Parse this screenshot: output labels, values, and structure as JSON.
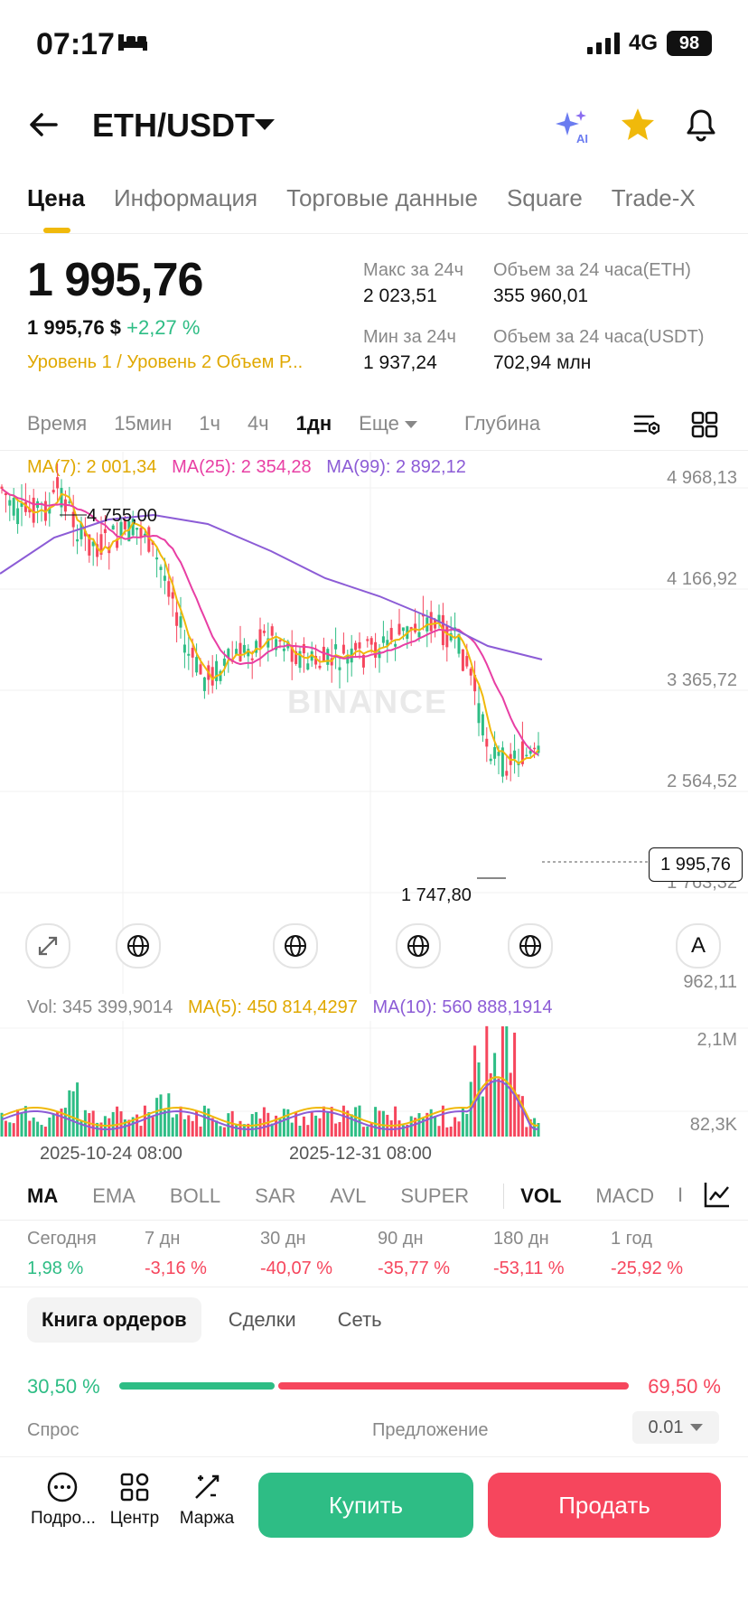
{
  "status": {
    "time": "07:17",
    "network": "4G",
    "battery": "98"
  },
  "header": {
    "pair": "ETH/USDT"
  },
  "tabs": [
    "Цена",
    "Информация",
    "Торговые данные",
    "Square",
    "Trade-X"
  ],
  "ticker": {
    "price": "1 995,76",
    "price_usd": "1 995,76 $",
    "change": "+2,27 %",
    "levels": "Уровень 1 / Уровень 2  Объем  Р...",
    "high_label": "Макс за 24ч",
    "high_value": "2 023,51",
    "low_label": "Мин за 24ч",
    "low_value": "1 937,24",
    "vol_eth_label": "Объем за 24 часа(ETH)",
    "vol_eth_value": "355 960,01",
    "vol_usdt_label": "Объем за 24 часа(USDT)",
    "vol_usdt_value": "702,94 млн"
  },
  "timeframes": {
    "items": [
      "Время",
      "15мин",
      "1ч",
      "4ч",
      "1дн"
    ],
    "more": "Еще",
    "depth": "Глубина"
  },
  "ma_line": {
    "ma7": "MA(7): 2 001,34",
    "ma25": "MA(25): 2 354,28",
    "ma99": "MA(99): 2 892,12"
  },
  "chart": {
    "y_labels": [
      "4 968,13",
      "4 166,92",
      "3 365,72",
      "2 564,52",
      "1 763,32",
      "962,11"
    ],
    "high_marker": "4 755,00",
    "low_marker": "1 747,80",
    "last_price": "1 995,76",
    "watermark": "BINANCE",
    "font_button": "A"
  },
  "volume": {
    "vol": "Vol: 345 399,9014",
    "ma5": "MA(5): 450 814,4297",
    "ma10": "MA(10): 560 888,1914",
    "y_top": "2,1M",
    "y_bottom": "82,3K"
  },
  "x_labels": [
    "2025-10-24 08:00",
    "2025-12-31 08:00"
  ],
  "indicators": [
    "MA",
    "EMA",
    "BOLL",
    "SAR",
    "AVL",
    "SUPER",
    "VOL",
    "MACD",
    "I"
  ],
  "performance": [
    {
      "label": "Сегодня",
      "value": "1,98 %"
    },
    {
      "label": "7 дн",
      "value": "-3,16 %"
    },
    {
      "label": "30 дн",
      "value": "-40,07 %"
    },
    {
      "label": "90 дн",
      "value": "-35,77 %"
    },
    {
      "label": "180 дн",
      "value": "-53,11 %"
    },
    {
      "label": "1 год",
      "value": "-25,92 %"
    }
  ],
  "orderbook": {
    "tabs": [
      "Книга ордеров",
      "Сделки",
      "Сеть"
    ],
    "bid_pct": "30,50 %",
    "ask_pct": "69,50 %",
    "bid_ratio": 0.305,
    "bid_label": "Спрос",
    "ask_label": "Предложение",
    "precision": "0.01"
  },
  "bottom": {
    "more": "Подро...",
    "center": "Центр",
    "margin": "Маржа",
    "buy": "Купить",
    "sell": "Продать"
  },
  "colors": {
    "up": "#2ebd85",
    "down": "#f6465d",
    "accent": "#f0b90b",
    "ma7": "#f0b90b",
    "ma25": "#e83fa4",
    "ma99": "#8c5cd6"
  }
}
